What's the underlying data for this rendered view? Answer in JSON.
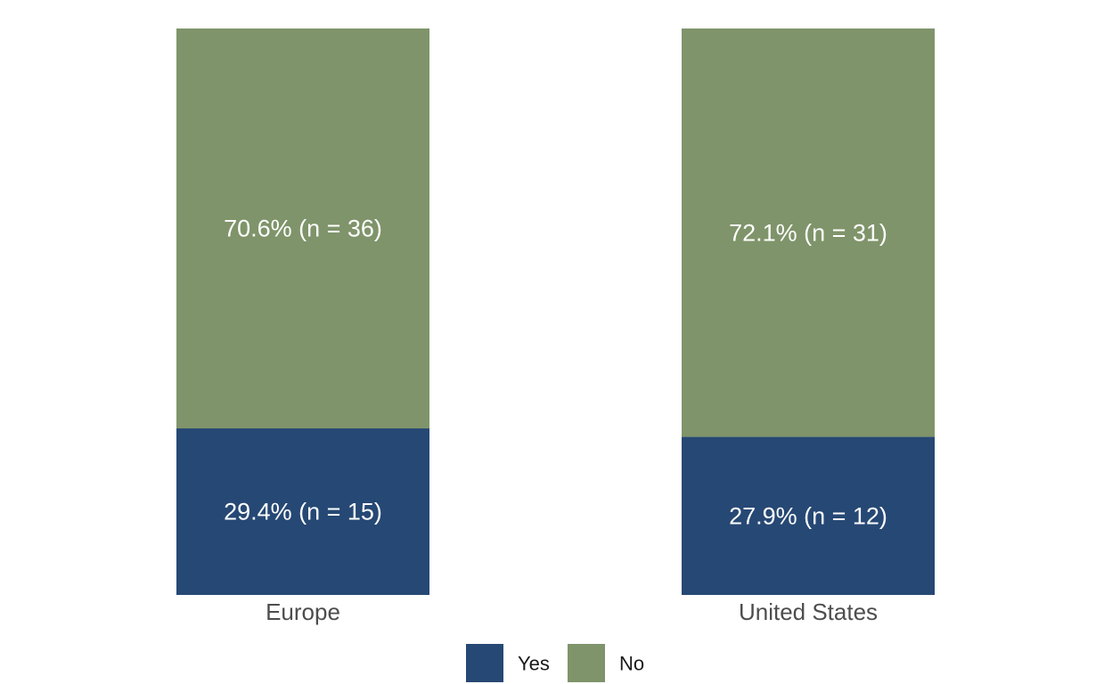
{
  "chart_data": {
    "type": "bar",
    "stacked": true,
    "normalized_percent": true,
    "categories": [
      "Europe",
      "United States"
    ],
    "series": [
      {
        "name": "Yes",
        "color": "#264874",
        "values": [
          29.4,
          27.9
        ],
        "counts": [
          15,
          12
        ],
        "labels": [
          "29.4% (n = 15)",
          "27.9% (n = 12)"
        ]
      },
      {
        "name": "No",
        "color": "#7f946a",
        "values": [
          70.6,
          72.1
        ],
        "counts": [
          36,
          31
        ],
        "labels": [
          "70.6% (n = 36)",
          "72.1% (n = 31)"
        ]
      }
    ],
    "ylim": [
      0,
      100
    ],
    "title": "",
    "xlabel": "",
    "ylabel": "",
    "grid": false,
    "legend_position": "bottom"
  }
}
